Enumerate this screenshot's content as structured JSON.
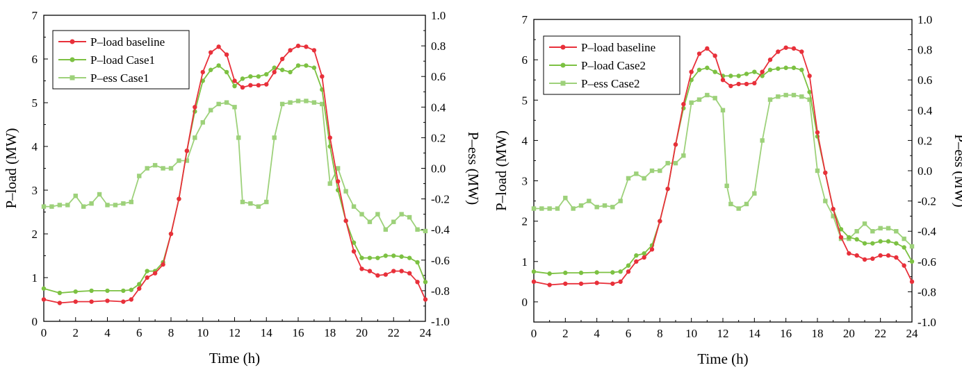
{
  "chart_data": [
    {
      "type": "line",
      "xlabel": "Time (h)",
      "ylabel_left": "P–load (MW)",
      "ylabel_right": "P–ess (MW)",
      "xlim": [
        0,
        24
      ],
      "ylim_left": [
        0,
        7
      ],
      "ylim_right": [
        -1.0,
        1.0
      ],
      "x_ticks": [
        "0",
        "2",
        "4",
        "6",
        "8",
        "10",
        "12",
        "14",
        "16",
        "18",
        "20",
        "22",
        "24"
      ],
      "y_left_ticks": [
        "0",
        "1",
        "2",
        "3",
        "4",
        "5",
        "6",
        "7"
      ],
      "y_right_ticks": [
        "-1.0",
        "-0.8",
        "-0.6",
        "-0.4",
        "-0.2",
        "0.0",
        "0.2",
        "0.4",
        "0.6",
        "0.8",
        "1.0"
      ],
      "legend_position": "top-left",
      "colors": {
        "baseline": "#e8303a",
        "case": "#7cc142",
        "ess": "#9dd17a"
      },
      "series": [
        {
          "name": "P–load baseline",
          "axis": "left",
          "x": [
            0,
            1,
            2,
            3,
            4,
            5,
            5.5,
            6,
            6.5,
            7,
            7.5,
            8,
            8.5,
            9,
            9.5,
            10,
            10.5,
            11,
            11.5,
            12,
            12.5,
            13,
            13.5,
            14,
            14.5,
            15,
            15.5,
            16,
            16.5,
            17,
            17.5,
            18,
            18.5,
            19,
            19.5,
            20,
            20.5,
            21,
            21.5,
            22,
            22.5,
            23,
            23.5,
            24
          ],
          "y": [
            0.5,
            0.42,
            0.45,
            0.45,
            0.47,
            0.45,
            0.5,
            0.75,
            1.0,
            1.1,
            1.3,
            2.0,
            2.8,
            3.9,
            4.9,
            5.7,
            6.15,
            6.28,
            6.1,
            5.5,
            5.35,
            5.4,
            5.4,
            5.42,
            5.7,
            6.0,
            6.2,
            6.3,
            6.28,
            6.2,
            5.6,
            4.2,
            3.2,
            2.3,
            1.6,
            1.2,
            1.15,
            1.05,
            1.07,
            1.15,
            1.15,
            1.1,
            0.9,
            0.5
          ]
        },
        {
          "name": "P–load Case1",
          "axis": "left",
          "x": [
            0,
            1,
            2,
            3,
            4,
            5,
            5.5,
            6,
            6.5,
            7,
            7.5,
            8,
            8.5,
            9,
            9.5,
            10,
            10.5,
            11,
            11.5,
            12,
            12.5,
            13,
            13.5,
            14,
            14.5,
            15,
            15.5,
            16,
            16.5,
            17,
            17.5,
            18,
            18.5,
            19,
            19.5,
            20,
            20.5,
            21,
            21.5,
            22,
            22.5,
            23,
            23.5,
            24
          ],
          "y": [
            0.75,
            0.65,
            0.68,
            0.7,
            0.7,
            0.7,
            0.72,
            0.85,
            1.15,
            1.15,
            1.35,
            2.0,
            2.8,
            3.9,
            4.8,
            5.5,
            5.75,
            5.85,
            5.7,
            5.38,
            5.55,
            5.6,
            5.6,
            5.65,
            5.8,
            5.75,
            5.7,
            5.85,
            5.85,
            5.8,
            5.3,
            4.0,
            3.0,
            2.3,
            1.8,
            1.45,
            1.45,
            1.45,
            1.5,
            1.5,
            1.48,
            1.45,
            1.35,
            0.9
          ]
        },
        {
          "name": "P–ess  Case1",
          "axis": "right",
          "x": [
            0,
            0.5,
            1,
            1.5,
            2,
            2.5,
            3,
            3.5,
            4,
            4.5,
            5,
            5.5,
            6,
            6.5,
            7,
            7.5,
            8,
            8.5,
            9,
            9.5,
            10,
            10.5,
            11,
            11.5,
            12,
            12.25,
            12.5,
            13,
            13.5,
            14,
            14.5,
            15,
            15.5,
            16,
            16.5,
            17,
            17.5,
            18,
            18.5,
            19,
            19.5,
            20,
            20.5,
            21,
            21.5,
            22,
            22.5,
            23,
            23.5,
            24
          ],
          "y": [
            -0.25,
            -0.25,
            -0.24,
            -0.24,
            -0.18,
            -0.25,
            -0.23,
            -0.17,
            -0.24,
            -0.24,
            -0.23,
            -0.22,
            -0.05,
            0.0,
            0.02,
            0.0,
            0.0,
            0.05,
            0.05,
            0.2,
            0.3,
            0.38,
            0.42,
            0.43,
            0.4,
            0.2,
            -0.22,
            -0.23,
            -0.25,
            -0.22,
            0.2,
            0.42,
            0.43,
            0.44,
            0.44,
            0.43,
            0.42,
            -0.1,
            0.0,
            -0.15,
            -0.25,
            -0.3,
            -0.35,
            -0.3,
            -0.4,
            -0.35,
            -0.3,
            -0.32,
            -0.4,
            -0.41
          ]
        }
      ]
    },
    {
      "type": "line",
      "xlabel": "Time (h)",
      "ylabel_left": "P–load (MW)",
      "ylabel_right": "P–ess (MW)",
      "xlim": [
        0,
        24
      ],
      "ylim_left": [
        -0.5,
        7
      ],
      "ylim_right": [
        -1.0,
        1.0
      ],
      "x_ticks": [
        "0",
        "2",
        "4",
        "6",
        "8",
        "10",
        "12",
        "14",
        "16",
        "18",
        "20",
        "22",
        "24"
      ],
      "y_left_ticks": [
        "0",
        "1",
        "2",
        "3",
        "4",
        "5",
        "6",
        "7"
      ],
      "y_right_ticks": [
        "-1.0",
        "-0.8",
        "-0.6",
        "-0.4",
        "-0.2",
        "0.0",
        "0.2",
        "0.4",
        "0.6",
        "0.8",
        "1.0"
      ],
      "legend_position": "top-left",
      "colors": {
        "baseline": "#e8303a",
        "case": "#7cc142",
        "ess": "#9dd17a"
      },
      "series": [
        {
          "name": "P–load baseline",
          "axis": "left",
          "x": [
            0,
            1,
            2,
            3,
            4,
            5,
            5.5,
            6,
            6.5,
            7,
            7.5,
            8,
            8.5,
            9,
            9.5,
            10,
            10.5,
            11,
            11.5,
            12,
            12.5,
            13,
            13.5,
            14,
            14.5,
            15,
            15.5,
            16,
            16.5,
            17,
            17.5,
            18,
            18.5,
            19,
            19.5,
            20,
            20.5,
            21,
            21.5,
            22,
            22.5,
            23,
            23.5,
            24
          ],
          "y": [
            0.5,
            0.42,
            0.45,
            0.45,
            0.47,
            0.45,
            0.5,
            0.75,
            1.0,
            1.1,
            1.3,
            2.0,
            2.8,
            3.9,
            4.9,
            5.7,
            6.15,
            6.28,
            6.1,
            5.5,
            5.35,
            5.4,
            5.4,
            5.42,
            5.7,
            6.0,
            6.2,
            6.3,
            6.28,
            6.2,
            5.6,
            4.2,
            3.2,
            2.3,
            1.6,
            1.2,
            1.15,
            1.05,
            1.07,
            1.15,
            1.15,
            1.1,
            0.9,
            0.5
          ]
        },
        {
          "name": "P–load Case2",
          "axis": "left",
          "x": [
            0,
            1,
            2,
            3,
            4,
            5,
            5.5,
            6,
            6.5,
            7,
            7.5,
            8,
            8.5,
            9,
            9.5,
            10,
            10.5,
            11,
            11.5,
            12,
            12.5,
            13,
            13.5,
            14,
            14.5,
            15,
            15.5,
            16,
            16.5,
            17,
            17.5,
            18,
            18.5,
            19,
            19.5,
            20,
            20.5,
            21,
            21.5,
            22,
            22.5,
            23,
            23.5,
            24
          ],
          "y": [
            0.75,
            0.7,
            0.72,
            0.72,
            0.73,
            0.73,
            0.75,
            0.9,
            1.15,
            1.2,
            1.4,
            2.0,
            2.8,
            3.9,
            4.8,
            5.5,
            5.75,
            5.8,
            5.7,
            5.6,
            5.6,
            5.6,
            5.65,
            5.7,
            5.6,
            5.75,
            5.78,
            5.8,
            5.8,
            5.75,
            5.2,
            4.1,
            3.2,
            2.3,
            1.8,
            1.6,
            1.55,
            1.45,
            1.45,
            1.5,
            1.5,
            1.45,
            1.35,
            1.0
          ]
        },
        {
          "name": "P–ess  Case2",
          "axis": "right",
          "x": [
            0,
            0.5,
            1,
            1.5,
            2,
            2.5,
            3,
            3.5,
            4,
            4.5,
            5,
            5.5,
            6,
            6.5,
            7,
            7.5,
            8,
            8.5,
            9,
            9.5,
            10,
            10.5,
            11,
            11.5,
            12,
            12.25,
            12.5,
            13,
            13.5,
            14,
            14.5,
            15,
            15.5,
            16,
            16.5,
            17,
            17.5,
            18,
            18.5,
            19,
            19.5,
            20,
            20.5,
            21,
            21.5,
            22,
            22.5,
            23,
            23.5,
            24
          ],
          "y": [
            -0.25,
            -0.25,
            -0.25,
            -0.25,
            -0.18,
            -0.25,
            -0.23,
            -0.2,
            -0.24,
            -0.23,
            -0.24,
            -0.2,
            -0.05,
            -0.02,
            -0.05,
            0.0,
            0.0,
            0.05,
            0.05,
            0.1,
            0.45,
            0.47,
            0.5,
            0.48,
            0.4,
            -0.1,
            -0.22,
            -0.25,
            -0.22,
            -0.15,
            0.2,
            0.47,
            0.49,
            0.5,
            0.5,
            0.49,
            0.47,
            0.0,
            -0.2,
            -0.3,
            -0.45,
            -0.45,
            -0.4,
            -0.35,
            -0.4,
            -0.38,
            -0.38,
            -0.4,
            -0.45,
            -0.5
          ]
        }
      ]
    }
  ]
}
